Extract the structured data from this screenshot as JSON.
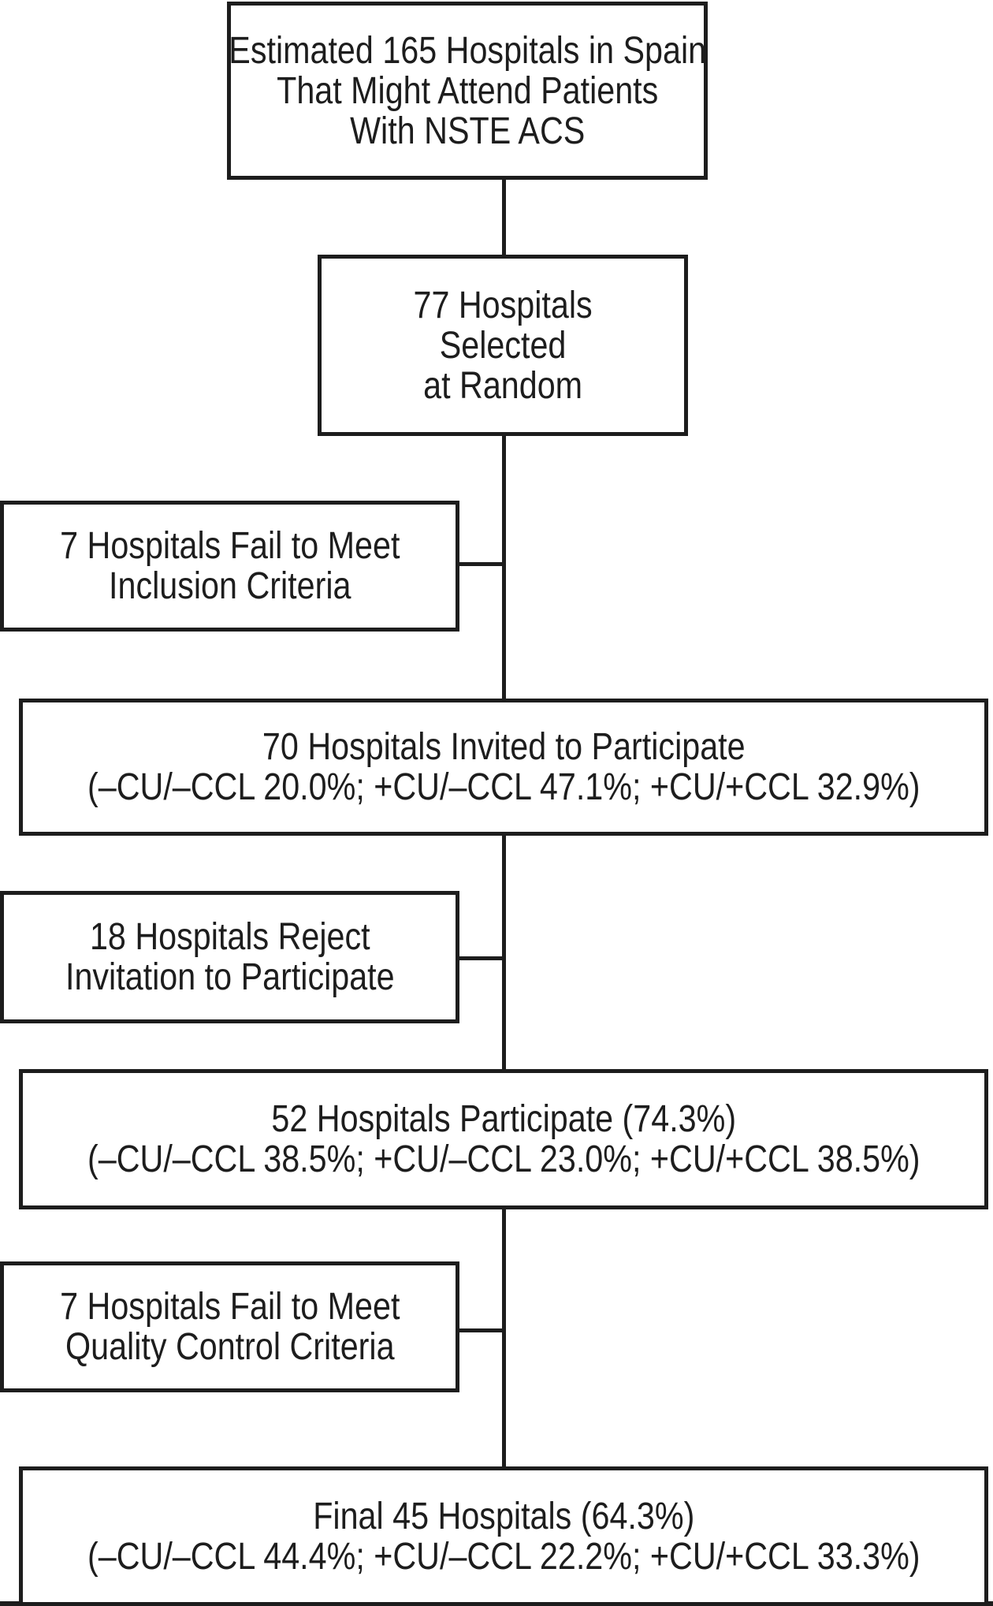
{
  "figure": {
    "background_color": "#ffffff",
    "line_color": "#1d1d1d",
    "boxes": [
      {
        "id": "source-population",
        "lines": [
          "Estimated 165 Hospitals in Spain",
          "That Might Attend Patients",
          "With NSTE ACS"
        ]
      },
      {
        "id": "random-selection",
        "lines": [
          "77 Hospitals",
          "Selected",
          "at Random"
        ]
      },
      {
        "id": "fail-inclusion",
        "lines": [
          "7 Hospitals Fail to Meet",
          "Inclusion Criteria"
        ]
      },
      {
        "id": "invited",
        "lines": [
          "70 Hospitals Invited to Participate",
          "(–CU/–CCL 20.0%; +CU/–CCL 47.1%; +CU/+CCL 32.9%)"
        ]
      },
      {
        "id": "reject-invitation",
        "lines": [
          "18 Hospitals Reject",
          "Invitation to Participate"
        ]
      },
      {
        "id": "participate",
        "lines": [
          "52 Hospitals Participate (74.3%)",
          "(–CU/–CCL 38.5%; +CU/–CCL 23.0%; +CU/+CCL 38.5%)"
        ]
      },
      {
        "id": "fail-quality",
        "lines": [
          "7 Hospitals Fail to Meet",
          "Quality Control Criteria"
        ]
      },
      {
        "id": "final-hospitals",
        "lines": [
          "Final 45 Hospitals (64.3%)",
          "(–CU/–CCL 44.4%; +CU/–CCL 22.2%; +CU/+CCL 33.3%)"
        ]
      }
    ]
  }
}
